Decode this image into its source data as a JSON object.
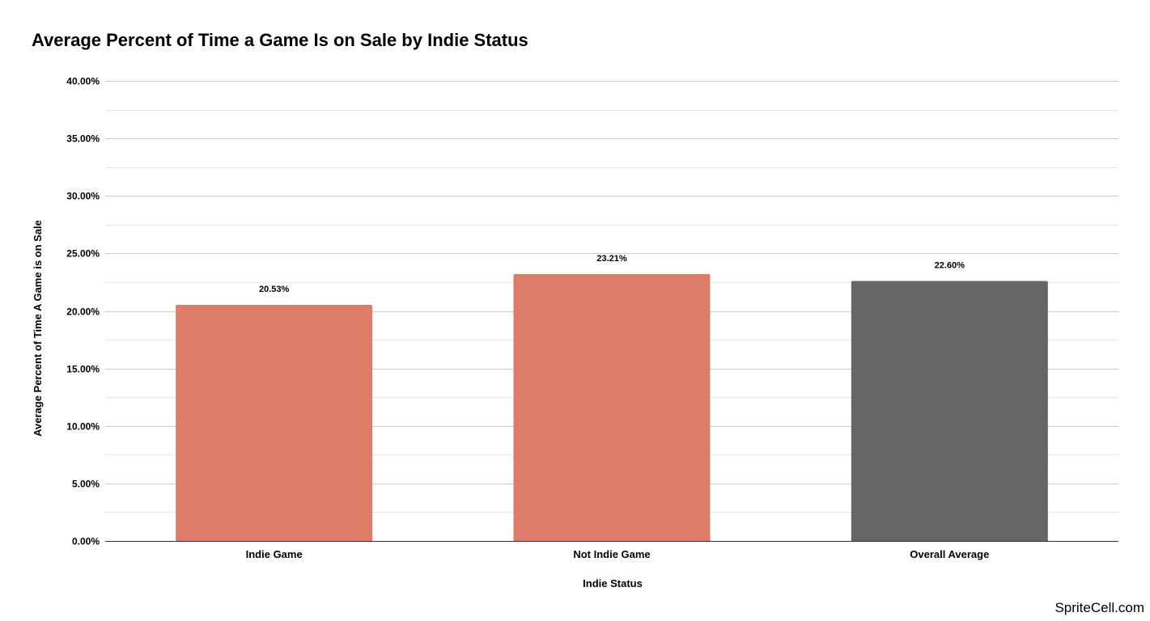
{
  "chart_data": {
    "type": "bar",
    "title": "Average Percent of Time a Game Is on Sale by Indie Status",
    "xlabel": "Indie Status",
    "ylabel": "Average Percent of Time A Game is on Sale",
    "categories": [
      "Indie Game",
      "Not Indie Game",
      "Overall Average"
    ],
    "values": [
      20.53,
      23.21,
      22.6
    ],
    "data_labels": [
      "20.53%",
      "23.21%",
      "22.60%"
    ],
    "bar_colors": [
      "#de7c6a",
      "#de7c6a",
      "#666666"
    ],
    "ylim": [
      0,
      40
    ],
    "y_ticks": [
      0,
      5,
      10,
      15,
      20,
      25,
      30,
      35,
      40
    ],
    "y_tick_labels": [
      "0.00%",
      "5.00%",
      "10.00%",
      "15.00%",
      "20.00%",
      "25.00%",
      "30.00%",
      "35.00%",
      "40.00%"
    ],
    "grid": true,
    "legend": "none"
  },
  "watermark": "SpriteCell.com",
  "colors": {
    "gridline": "#cccccc",
    "minor_gridline": "#e6e6e6",
    "axis": "#333333"
  }
}
